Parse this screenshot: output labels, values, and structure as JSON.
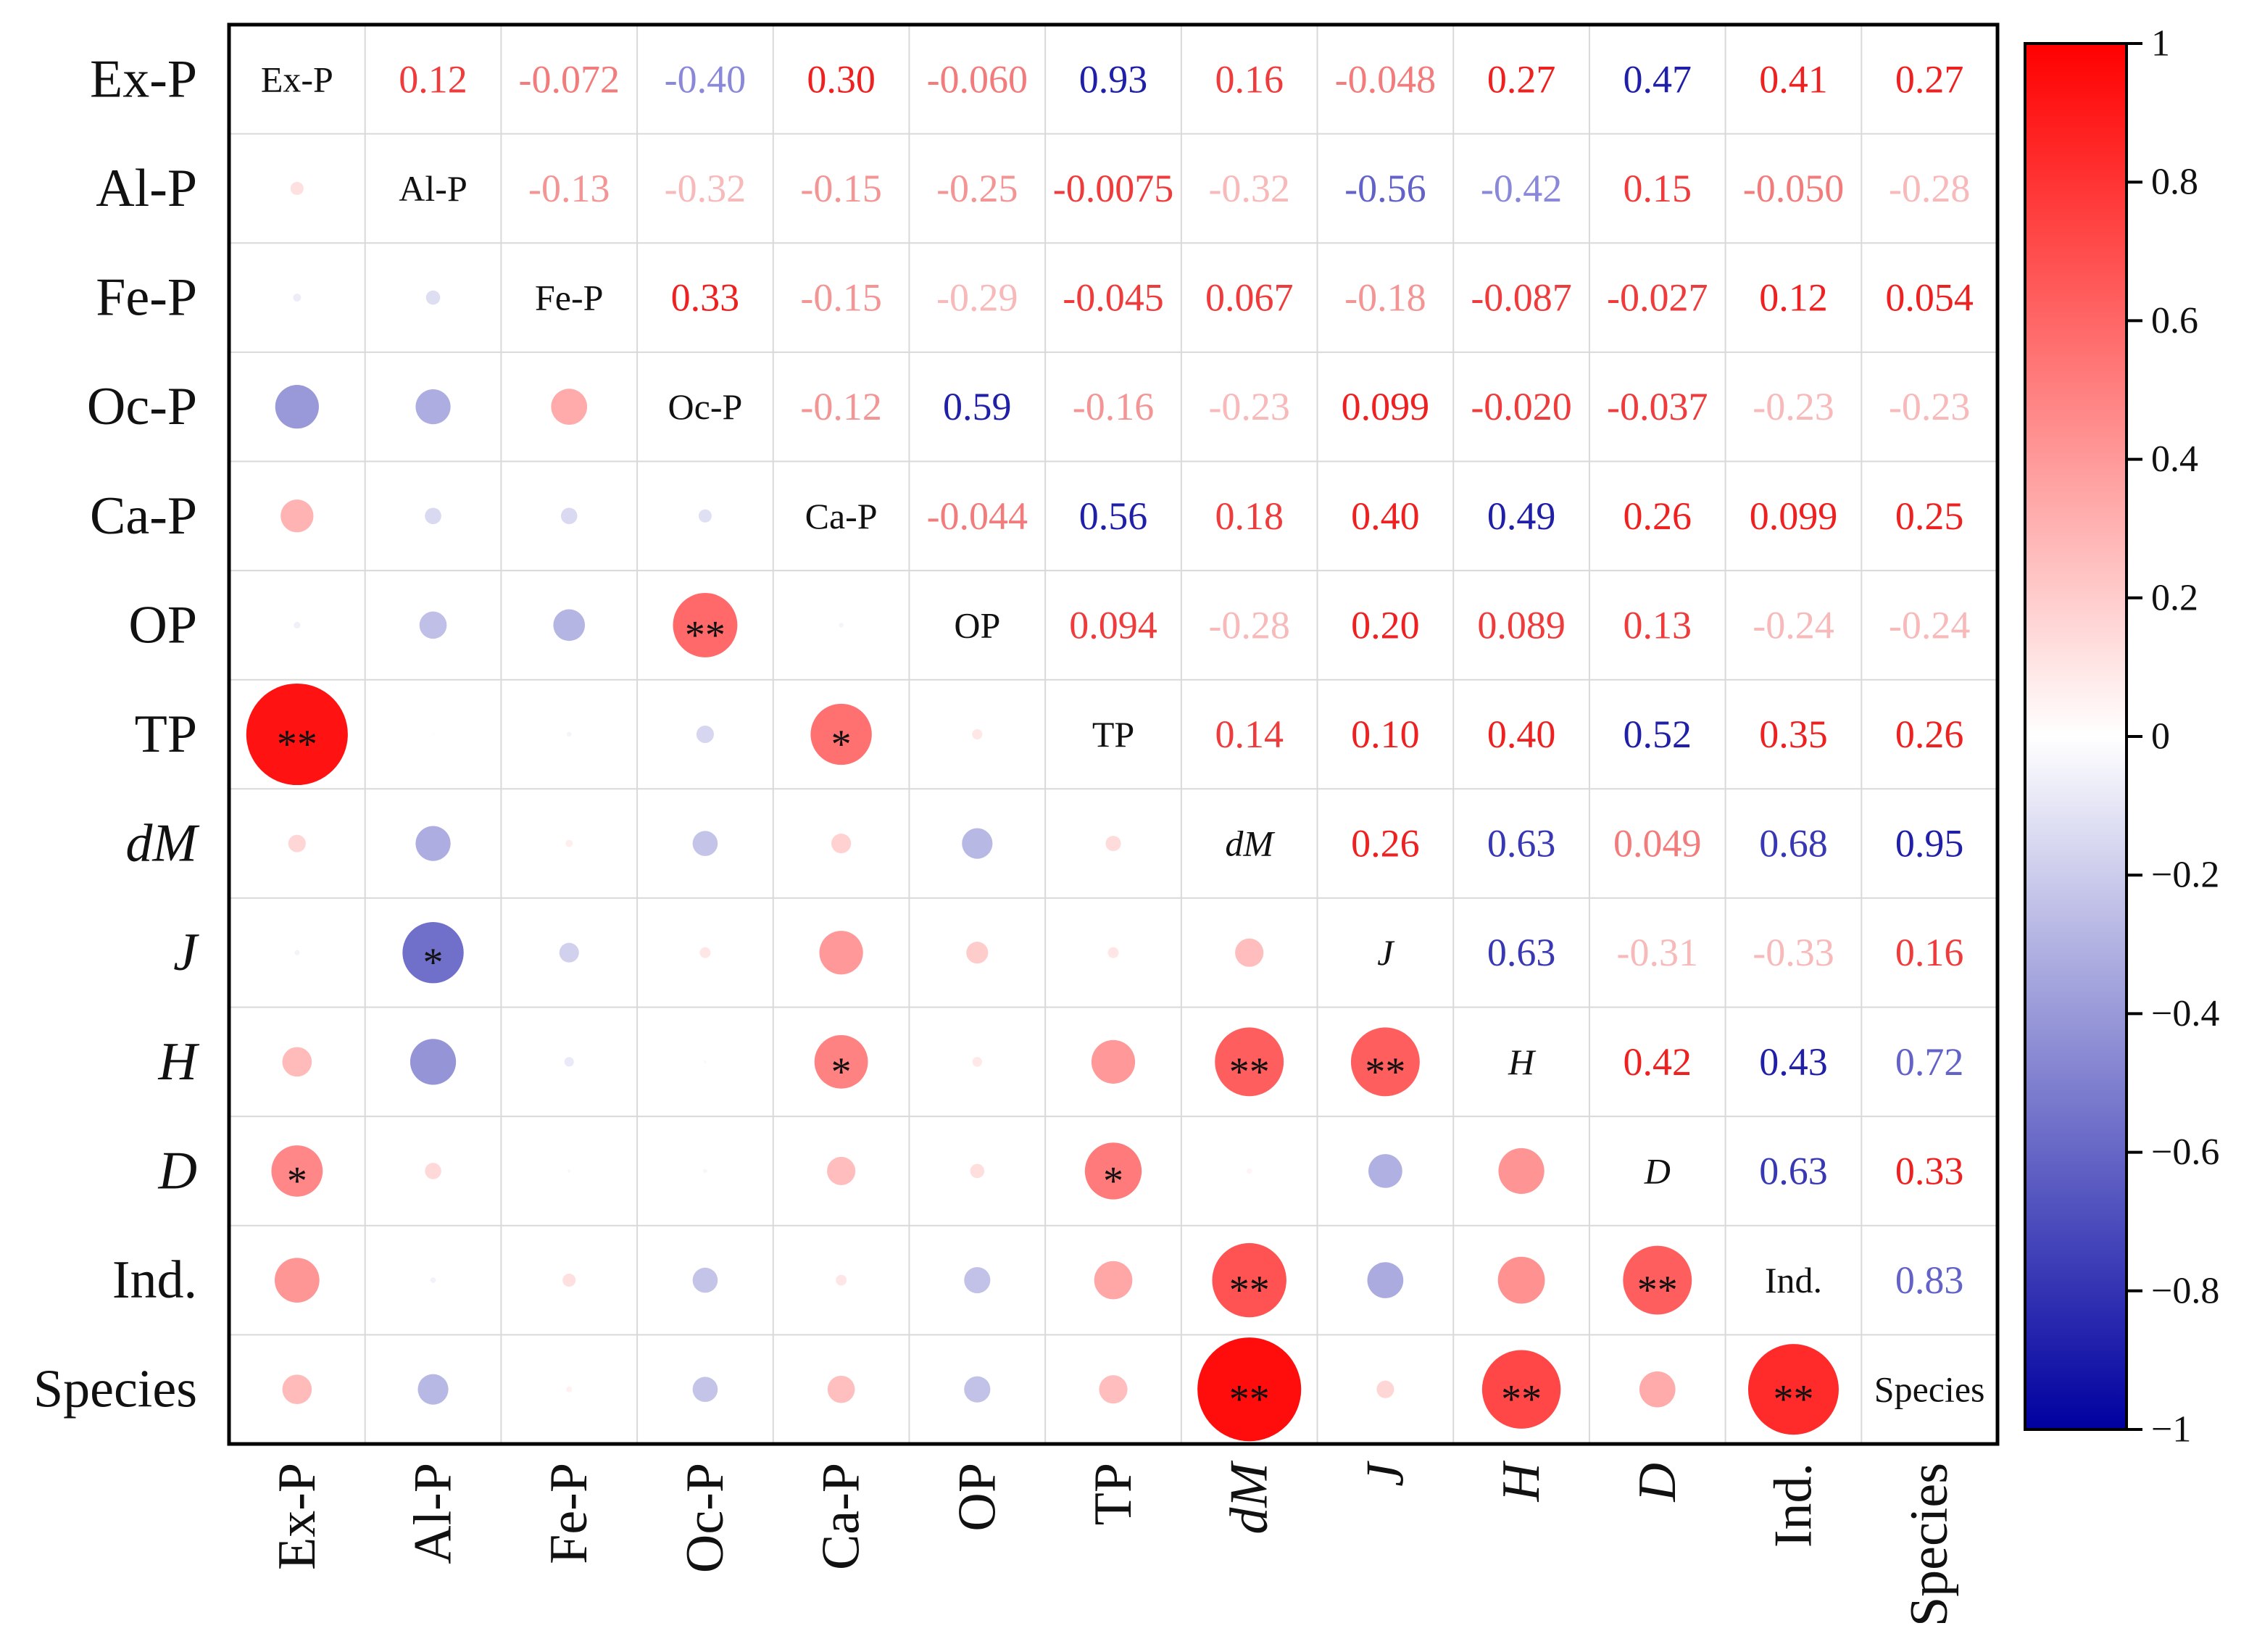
{
  "chart_data": {
    "type": "correlation-matrix",
    "title": "",
    "variables": [
      "Ex-P",
      "Al-P",
      "Fe-P",
      "Oc-P",
      "Ca-P",
      "OP",
      "TP",
      "dM",
      "J",
      "H",
      "D",
      "Ind.",
      "Species"
    ],
    "italic_variables": [
      "dM",
      "J",
      "H",
      "D"
    ],
    "lower_triangle_display": "circles sized and colored by correlation, with significance stars",
    "upper_triangle_display": "correlation coefficient text",
    "lower_values": [
      [
        null,
        null,
        null,
        null,
        null,
        null,
        null,
        null,
        null,
        null,
        null,
        null,
        null
      ],
      [
        0.12,
        null,
        null,
        null,
        null,
        null,
        null,
        null,
        null,
        null,
        null,
        null,
        null
      ],
      [
        -0.072,
        -0.13,
        null,
        null,
        null,
        null,
        null,
        null,
        null,
        null,
        null,
        null,
        null
      ],
      [
        -0.4,
        -0.32,
        0.33,
        null,
        null,
        null,
        null,
        null,
        null,
        null,
        null,
        null,
        null
      ],
      [
        0.3,
        -0.15,
        -0.15,
        -0.12,
        null,
        null,
        null,
        null,
        null,
        null,
        null,
        null,
        null
      ],
      [
        -0.06,
        -0.25,
        -0.29,
        0.59,
        -0.044,
        null,
        null,
        null,
        null,
        null,
        null,
        null,
        null
      ],
      [
        0.93,
        -0.0075,
        -0.045,
        -0.16,
        0.56,
        0.094,
        null,
        null,
        null,
        null,
        null,
        null,
        null
      ],
      [
        0.16,
        -0.32,
        0.067,
        -0.23,
        0.18,
        -0.28,
        0.14,
        null,
        null,
        null,
        null,
        null,
        null
      ],
      [
        -0.048,
        -0.56,
        -0.18,
        0.099,
        0.4,
        0.2,
        0.1,
        0.26,
        null,
        null,
        null,
        null,
        null
      ],
      [
        0.27,
        -0.42,
        -0.087,
        -0.02,
        0.49,
        0.089,
        0.4,
        0.63,
        0.63,
        null,
        null,
        null,
        null
      ],
      [
        0.47,
        0.15,
        -0.027,
        -0.037,
        0.26,
        0.13,
        0.52,
        0.049,
        -0.31,
        0.42,
        null,
        null,
        null
      ],
      [
        0.41,
        -0.05,
        0.12,
        -0.23,
        0.099,
        -0.24,
        0.35,
        0.68,
        -0.33,
        0.43,
        0.63,
        null,
        null
      ],
      [
        0.27,
        -0.28,
        0.054,
        -0.23,
        0.25,
        -0.24,
        0.26,
        0.95,
        0.16,
        0.72,
        0.33,
        0.83,
        null
      ]
    ],
    "upper_text": [
      [
        null,
        "0.12",
        "-0.072",
        "-0.40",
        "0.30",
        "-0.060",
        "0.93",
        "0.16",
        "-0.048",
        "0.27",
        "0.47",
        "0.41",
        "0.27"
      ],
      [
        null,
        null,
        "-0.13",
        "-0.32",
        "-0.15",
        "-0.25",
        "-0.0075",
        "-0.32",
        "-0.56",
        "-0.42",
        "0.15",
        "-0.050",
        "-0.28"
      ],
      [
        null,
        null,
        null,
        "0.33",
        "-0.15",
        "-0.29",
        "-0.045",
        "0.067",
        "-0.18",
        "-0.087",
        "-0.027",
        "0.12",
        "0.054"
      ],
      [
        null,
        null,
        null,
        null,
        "-0.12",
        "0.59",
        "-0.16",
        "-0.23",
        "0.099",
        "-0.020",
        "-0.037",
        "-0.23",
        "-0.23"
      ],
      [
        null,
        null,
        null,
        null,
        null,
        "-0.044",
        "0.56",
        "0.18",
        "0.40",
        "0.49",
        "0.26",
        "0.099",
        "0.25"
      ],
      [
        null,
        null,
        null,
        null,
        null,
        null,
        "0.094",
        "-0.28",
        "0.20",
        "0.089",
        "0.13",
        "-0.24",
        "-0.24"
      ],
      [
        null,
        null,
        null,
        null,
        null,
        null,
        null,
        "0.14",
        "0.10",
        "0.40",
        "0.52",
        "0.35",
        "0.26"
      ],
      [
        null,
        null,
        null,
        null,
        null,
        null,
        null,
        null,
        "0.26",
        "0.63",
        "0.049",
        "0.68",
        "0.95"
      ],
      [
        null,
        null,
        null,
        null,
        null,
        null,
        null,
        null,
        null,
        "0.63",
        "-0.31",
        "-0.33",
        "0.16"
      ],
      [
        null,
        null,
        null,
        null,
        null,
        null,
        null,
        null,
        null,
        null,
        "0.42",
        "0.43",
        "0.72"
      ],
      [
        null,
        null,
        null,
        null,
        null,
        null,
        null,
        null,
        null,
        null,
        null,
        "0.63",
        "0.33"
      ],
      [
        null,
        null,
        null,
        null,
        null,
        null,
        null,
        null,
        null,
        null,
        null,
        null,
        "0.83"
      ],
      [
        null,
        null,
        null,
        null,
        null,
        null,
        null,
        null,
        null,
        null,
        null,
        null,
        null
      ]
    ],
    "upper_text_colors": [
      [
        null,
        "#ef3b3b",
        "#f27b7b",
        "#8a88d8",
        "#ef2020",
        "#f27b7b",
        "#1f1fa8",
        "#ef3b3b",
        "#f27b7b",
        "#ef2020",
        "#1f1fa8",
        "#ef2020",
        "#ef2020"
      ],
      [
        null,
        null,
        "#f49595",
        "#f7b9b9",
        "#f49595",
        "#f49595",
        "#ef3b3b",
        "#f7b9b9",
        "#6262c8",
        "#8a88d8",
        "#ef3b3b",
        "#f27b7b",
        "#f7b9b9"
      ],
      [
        null,
        null,
        null,
        "#ef2020",
        "#f49595",
        "#f7b9b9",
        "#ef3b3b",
        "#ef3b3b",
        "#f49595",
        "#ef3b3b",
        "#ef3b3b",
        "#ef2020",
        "#ef2020"
      ],
      [
        null,
        null,
        null,
        null,
        "#f49595",
        "#1f1fa8",
        "#f49595",
        "#f7b9b9",
        "#ef2020",
        "#ef3b3b",
        "#ef3b3b",
        "#f7b9b9",
        "#f7b9b9"
      ],
      [
        null,
        null,
        null,
        null,
        null,
        "#f27b7b",
        "#1f1fa8",
        "#ef3b3b",
        "#ef2020",
        "#1f1fa8",
        "#ef2020",
        "#ef2020",
        "#ef2020"
      ],
      [
        null,
        null,
        null,
        null,
        null,
        null,
        "#ef3b3b",
        "#f7b9b9",
        "#ef2020",
        "#ef3b3b",
        "#ef3b3b",
        "#f7b9b9",
        "#f7b9b9"
      ],
      [
        null,
        null,
        null,
        null,
        null,
        null,
        null,
        "#ef3b3b",
        "#ef2020",
        "#ef2020",
        "#1f1fa8",
        "#ef2020",
        "#ef2020"
      ],
      [
        null,
        null,
        null,
        null,
        null,
        null,
        null,
        null,
        "#ef2020",
        "#3838b4",
        "#f27b7b",
        "#3838b4",
        "#1f1fa8"
      ],
      [
        null,
        null,
        null,
        null,
        null,
        null,
        null,
        null,
        null,
        "#3838b4",
        "#f7b9b9",
        "#f7b9b9",
        "#ef3b3b"
      ],
      [
        null,
        null,
        null,
        null,
        null,
        null,
        null,
        null,
        null,
        null,
        "#ef2020",
        "#1f1fa8",
        "#6262c8"
      ],
      [
        null,
        null,
        null,
        null,
        null,
        null,
        null,
        null,
        null,
        null,
        null,
        "#3838b4",
        "#ef2020"
      ],
      [
        null,
        null,
        null,
        null,
        null,
        null,
        null,
        null,
        null,
        null,
        null,
        null,
        "#6262c8"
      ],
      [
        null,
        null,
        null,
        null,
        null,
        null,
        null,
        null,
        null,
        null,
        null,
        null,
        null
      ]
    ],
    "significance": [
      [
        "",
        "",
        "",
        "",
        "",
        "",
        "",
        "",
        "",
        "",
        "",
        "",
        ""
      ],
      [
        "",
        "",
        "",
        "",
        "",
        "",
        "",
        "",
        "",
        "",
        "",
        "",
        ""
      ],
      [
        "",
        "",
        "",
        "",
        "",
        "",
        "",
        "",
        "",
        "",
        "",
        "",
        ""
      ],
      [
        "",
        "",
        "",
        "",
        "",
        "",
        "",
        "",
        "",
        "",
        "",
        "",
        ""
      ],
      [
        "",
        "",
        "",
        "",
        "",
        "",
        "",
        "",
        "",
        "",
        "",
        "",
        ""
      ],
      [
        "",
        "",
        "",
        "**",
        "",
        "",
        "",
        "",
        "",
        "",
        "",
        "",
        ""
      ],
      [
        "**",
        "",
        "",
        "",
        "*",
        "",
        "",
        "",
        "",
        "",
        "",
        "",
        ""
      ],
      [
        "",
        "",
        "",
        "",
        "",
        "",
        "",
        "",
        "",
        "",
        "",
        "",
        ""
      ],
      [
        "",
        "*",
        "",
        "",
        "",
        "",
        "",
        "",
        "",
        "",
        "",
        "",
        ""
      ],
      [
        "",
        "",
        "",
        "",
        "*",
        "",
        "",
        "**",
        "**",
        "",
        "",
        "",
        ""
      ],
      [
        "*",
        "",
        "",
        "",
        "",
        "",
        "*",
        "",
        "",
        "",
        "",
        "",
        ""
      ],
      [
        "",
        "",
        "",
        "",
        "",
        "",
        "",
        "**",
        "",
        "",
        "**",
        "",
        ""
      ],
      [
        "",
        "",
        "",
        "",
        "",
        "",
        "",
        "**",
        "",
        "**",
        "",
        "**",
        ""
      ]
    ],
    "colorbar": {
      "range": [
        -1,
        1
      ],
      "ticks": [
        "1",
        "0.8",
        "0.6",
        "0.4",
        "0.2",
        "0",
        "−0.2",
        "−0.4",
        "−0.6",
        "−0.8",
        "−1"
      ],
      "tick_values": [
        1,
        0.8,
        0.6,
        0.4,
        0.2,
        0,
        -0.2,
        -0.4,
        -0.6,
        -0.8,
        -1
      ],
      "colors": {
        "negative": "#0000a0",
        "zero": "#ffffff",
        "positive": "#ff0000"
      }
    }
  }
}
